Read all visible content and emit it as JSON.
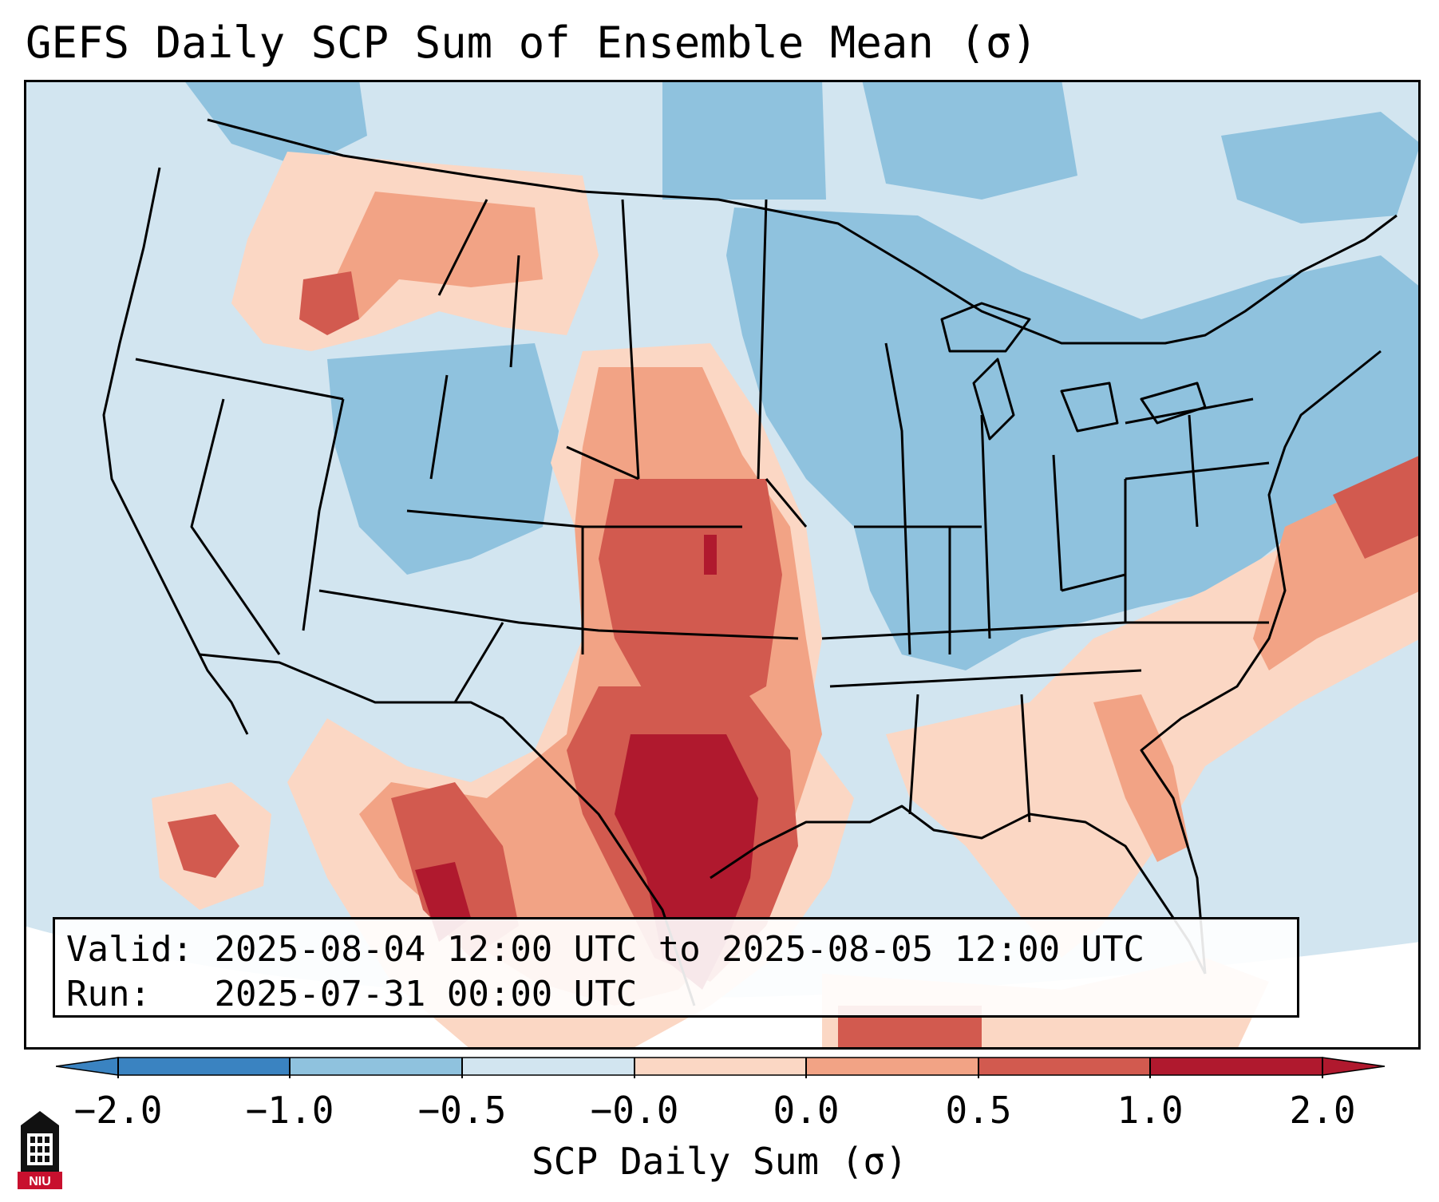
{
  "title": "GEFS Daily SCP Sum of Ensemble Mean (σ)",
  "info": {
    "valid_label": "Valid:",
    "valid_value": "2025-08-04 12:00 UTC to 2025-08-05 12:00 UTC",
    "run_label": "Run:",
    "run_value": "2025-07-31 00:00 UTC"
  },
  "colorbar": {
    "label": "SCP Daily Sum (σ)",
    "ticks": [
      "−2.0",
      "−1.0",
      "−0.5",
      "−0.0",
      "0.0",
      "0.5",
      "1.0",
      "2.0"
    ],
    "colors": [
      "#3a83c1",
      "#8fc2de",
      "#d2e5f0",
      "#f7f7f7",
      "#fbd7c4",
      "#f2a385",
      "#d25a4f",
      "#b0192e"
    ]
  },
  "logo": {
    "text": "NIU",
    "icon": "niu-building-icon"
  },
  "map": {
    "background_color": "#d2e5f0",
    "regions": [
      {
        "name": "southern-plains",
        "level": "pos-high"
      },
      {
        "name": "kansas",
        "level": "pos-mid"
      },
      {
        "name": "northern-rockies",
        "level": "pos-low"
      },
      {
        "name": "upper-midwest",
        "level": "neg-mid"
      },
      {
        "name": "atlantic-band",
        "level": "pos-mid"
      }
    ]
  }
}
